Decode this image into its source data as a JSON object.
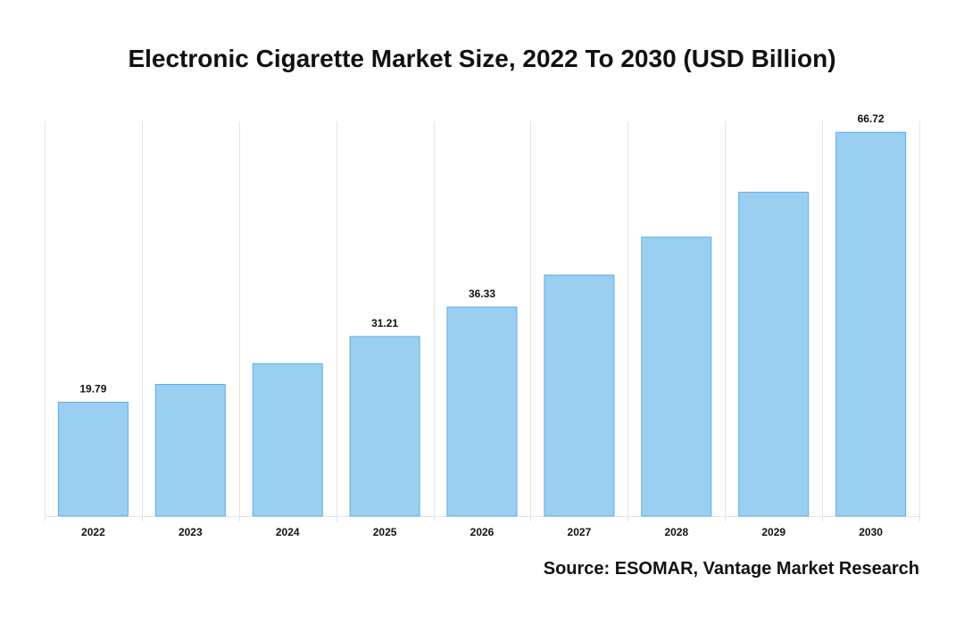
{
  "chart_data": {
    "type": "bar",
    "title": "Electronic Cigarette Market Size, 2022 To 2030 (USD Billion)",
    "xlabel": "",
    "ylabel": "",
    "categories": [
      "2022",
      "2023",
      "2024",
      "2025",
      "2026",
      "2027",
      "2028",
      "2029",
      "2030"
    ],
    "values": [
      19.79,
      22.9,
      26.5,
      31.21,
      36.33,
      41.9,
      48.5,
      56.3,
      66.72
    ],
    "data_labels": [
      "19.79",
      "",
      "",
      "31.21",
      "36.33",
      "",
      "",
      "",
      "66.72"
    ],
    "ylim": [
      0,
      70
    ],
    "grid": "vertical",
    "legend": "none",
    "colors": {
      "bar_fill": "#9acff2",
      "bar_stroke": "#5aaee6",
      "grid": "#e4e4e4",
      "text": "#111111"
    }
  },
  "source": "Source: ESOMAR, Vantage Market Research"
}
